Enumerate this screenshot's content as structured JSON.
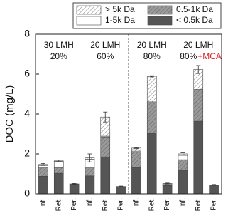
{
  "chart_data": {
    "type": "bar",
    "stacked": true,
    "y_label": "DOC (mg/L)",
    "categories": [
      "Inf.",
      "Ret.",
      "Per.",
      "Inf.",
      "Ret.",
      "Per.",
      "Inf.",
      "Ret.",
      "Per.",
      "Inf.",
      "Ret.",
      "Per."
    ],
    "panels": [
      {
        "top": "30 LMH",
        "bottom": "20%"
      },
      {
        "top": "20 LMH",
        "bottom": "60%"
      },
      {
        "top": "20 LMH",
        "bottom": "80%"
      },
      {
        "top": "20 LMH",
        "bottom": "80%",
        "note": "+MCA",
        "note_color": "#d62728"
      }
    ],
    "series": [
      {
        "name": "< 0.5k Da",
        "color": "#555555",
        "hatch": false,
        "values": [
          0.88,
          1.03,
          0.5,
          0.9,
          1.85,
          0.37,
          1.32,
          3.04,
          0.42,
          1.18,
          3.64,
          0.45
        ]
      },
      {
        "name": "0.5-1k Da",
        "color": "#9a9a9a",
        "hatch": true,
        "values": [
          0.42,
          0.29,
          0,
          0.4,
          1.0,
          0,
          0.78,
          1.53,
          0.1,
          0.53,
          1.57,
          0
        ]
      },
      {
        "name": "1-5k Da",
        "color": "#ffffff",
        "hatch": false,
        "values": [
          0.12,
          0.3,
          0,
          0.43,
          0.04,
          0,
          0.04,
          0.04,
          0,
          0.22,
          0.02,
          0
        ]
      },
      {
        "name": "> 5k Da",
        "color": "#ffffff",
        "hatch": true,
        "values": [
          0.05,
          0.03,
          0,
          0.07,
          0.96,
          0,
          0.15,
          1.28,
          0,
          0.07,
          1.0,
          0
        ]
      }
    ],
    "errors": [
      0.05,
      0.05,
      0.02,
      0.2,
      0.25,
      0.02,
      0.03,
      0.03,
      0.02,
      0.05,
      0.2,
      0.02
    ],
    "ylim": [
      0,
      8
    ],
    "yticks": [
      0,
      2,
      4,
      6,
      8
    ]
  }
}
